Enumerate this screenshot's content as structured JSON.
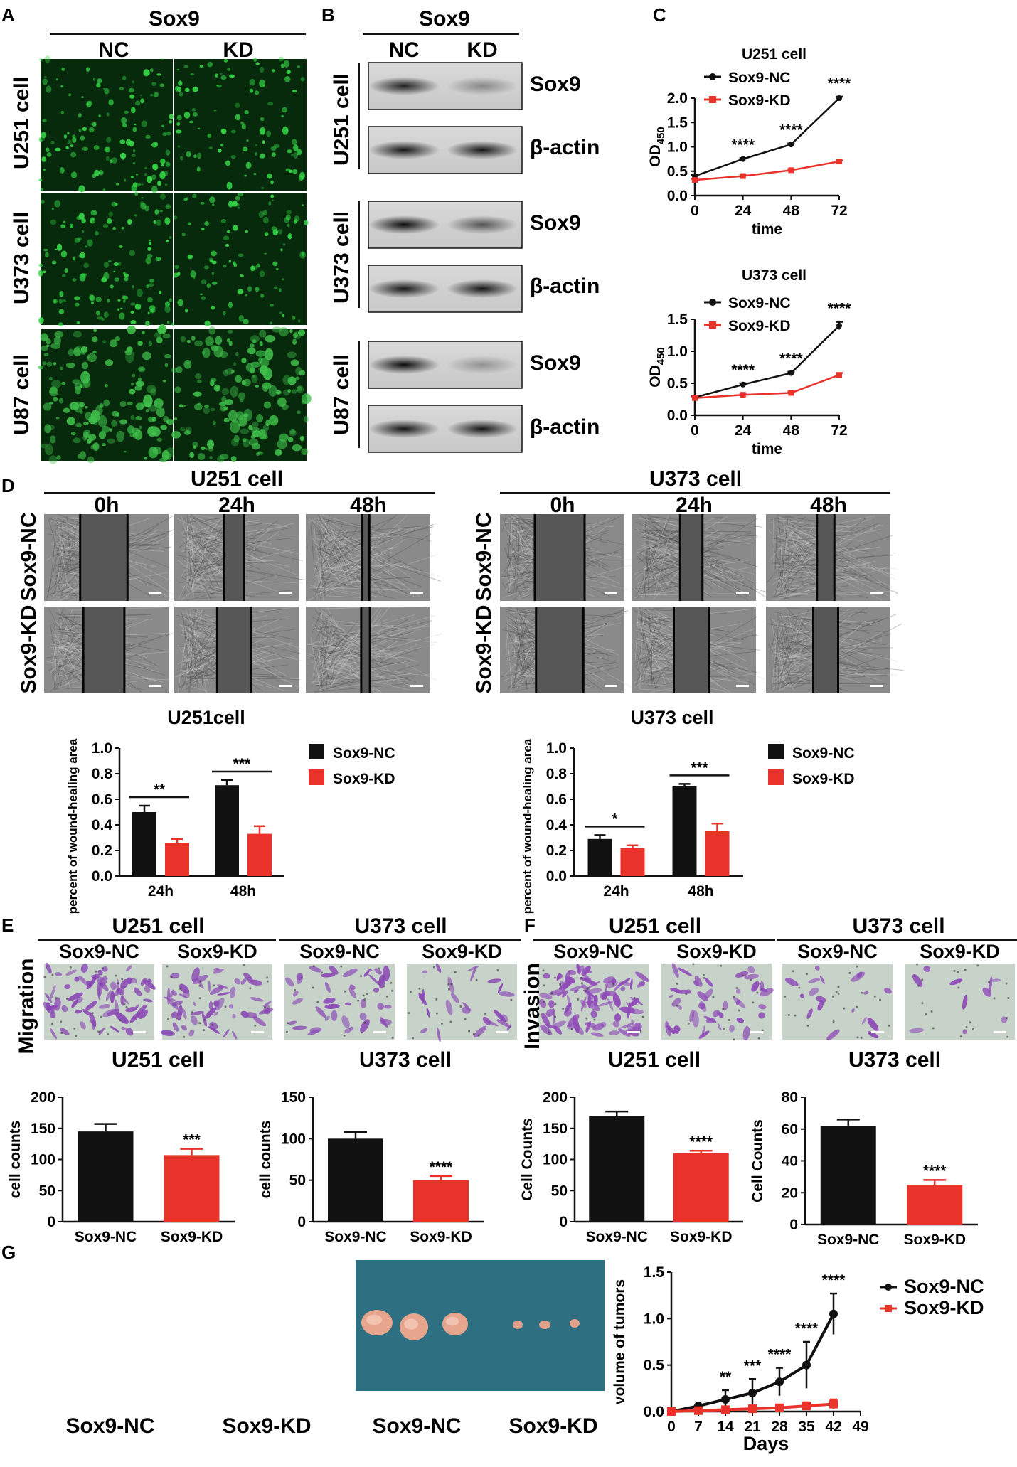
{
  "panels": {
    "A": "A",
    "B": "B",
    "C": "C",
    "D": "D",
    "E": "E",
    "F": "F",
    "G": "G"
  },
  "panelA": {
    "title": "Sox9",
    "cols": [
      "NC",
      "KD"
    ],
    "rows": [
      "U251 cell",
      "U373 cell",
      "U87 cell"
    ]
  },
  "panelB": {
    "title": "Sox9",
    "cols": [
      "NC",
      "KD"
    ],
    "rows": [
      "U251 cell",
      "U373 cell",
      "U87 cell"
    ],
    "bands": [
      "Sox9",
      "β-actin"
    ],
    "sox9_intensity": [
      [
        0.85,
        0.35
      ],
      [
        0.95,
        0.6
      ],
      [
        0.95,
        0.3
      ]
    ]
  },
  "panelC": {
    "series_names": [
      "Sox9-NC",
      "Sox9-KD"
    ],
    "colors": {
      "nc": "#111111",
      "kd": "#e8322a"
    },
    "ylabel_main": "OD",
    "ylabel_sub": "450",
    "xlabel": "time"
  },
  "panelD": {
    "groups": [
      {
        "title": "U251 cell",
        "times": [
          "0h",
          "24h",
          "48h"
        ],
        "rows": [
          "Sox9-NC",
          "Sox9-KD"
        ],
        "gap": [
          [
            0.38,
            0.16,
            0.06
          ],
          [
            0.33,
            0.27,
            0.07
          ]
        ]
      },
      {
        "title": "U373 cell",
        "times": [
          "0h",
          "24h",
          "48h"
        ],
        "rows": [
          "Sox9-NC",
          "Sox9-KD"
        ],
        "gap": [
          [
            0.4,
            0.18,
            0.14
          ],
          [
            0.38,
            0.28,
            0.2
          ]
        ]
      }
    ]
  },
  "panelE": {
    "groups": [
      {
        "title": "U251 cell",
        "cols": [
          "Sox9-NC",
          "Sox9-KD"
        ]
      },
      {
        "title": "U373 cell",
        "cols": [
          "Sox9-NC",
          "Sox9-KD"
        ]
      }
    ],
    "side_label": "Migration",
    "density": [
      [
        70,
        55
      ],
      [
        40,
        25
      ]
    ]
  },
  "panelF": {
    "groups": [
      {
        "title": "U251 cell",
        "cols": [
          "Sox9-NC",
          "Sox9-KD"
        ]
      },
      {
        "title": "U373 cell",
        "cols": [
          "Sox9-NC",
          "Sox9-KD"
        ]
      }
    ],
    "side_label": "Invasion",
    "density": [
      [
        95,
        45
      ],
      [
        18,
        10
      ]
    ]
  },
  "panelG": {
    "labels": [
      "Sox9-NC",
      "Sox9-KD",
      "Sox9-NC",
      "Sox9-KD"
    ]
  },
  "chart_data": [
    {
      "id": "C1",
      "type": "line",
      "title": "U251 cell",
      "x": [
        0,
        24,
        48,
        72
      ],
      "series": [
        {
          "name": "Sox9-NC",
          "values": [
            0.4,
            0.75,
            1.05,
            2.0
          ],
          "err": [
            0.02,
            0.02,
            0.02,
            0.03
          ]
        },
        {
          "name": "Sox9-KD",
          "values": [
            0.32,
            0.4,
            0.52,
            0.7
          ],
          "err": [
            0.02,
            0.02,
            0.02,
            0.02
          ]
        }
      ],
      "xlabel": "time",
      "ylabel": "OD450",
      "ylim": [
        0,
        2.0
      ],
      "yticks": [
        0.0,
        0.5,
        1.0,
        1.5,
        2.0
      ],
      "xticks": [
        0,
        24,
        48,
        72
      ],
      "annotations": [
        {
          "x": 24,
          "text": "****"
        },
        {
          "x": 48,
          "text": "****"
        },
        {
          "x": 72,
          "text": "****"
        }
      ]
    },
    {
      "id": "C2",
      "type": "line",
      "title": "U373 cell",
      "x": [
        0,
        24,
        48,
        72
      ],
      "series": [
        {
          "name": "Sox9-NC",
          "values": [
            0.28,
            0.48,
            0.66,
            1.4
          ],
          "err": [
            0.02,
            0.02,
            0.02,
            0.06
          ]
        },
        {
          "name": "Sox9-KD",
          "values": [
            0.27,
            0.32,
            0.35,
            0.63
          ],
          "err": [
            0.02,
            0.02,
            0.02,
            0.03
          ]
        }
      ],
      "xlabel": "time",
      "ylabel": "OD450",
      "ylim": [
        0,
        1.5
      ],
      "yticks": [
        0.0,
        0.5,
        1.0,
        1.5
      ],
      "xticks": [
        0,
        24,
        48,
        72
      ],
      "annotations": [
        {
          "x": 24,
          "text": "****"
        },
        {
          "x": 48,
          "text": "****"
        },
        {
          "x": 72,
          "text": "****"
        }
      ]
    },
    {
      "id": "D1",
      "type": "bar",
      "title": "U251cell",
      "categories": [
        "24h",
        "48h"
      ],
      "series": [
        {
          "name": "Sox9-NC",
          "values": [
            0.5,
            0.71
          ],
          "err": [
            0.05,
            0.04
          ]
        },
        {
          "name": "Sox9-KD",
          "values": [
            0.26,
            0.33
          ],
          "err": [
            0.03,
            0.06
          ]
        }
      ],
      "ylabel": "percent of wound-healing area",
      "ylim": [
        0,
        1.0
      ],
      "yticks": [
        0.0,
        0.2,
        0.4,
        0.6,
        0.8,
        1.0
      ],
      "annotations": [
        {
          "cat": "24h",
          "text": "**"
        },
        {
          "cat": "48h",
          "text": "***"
        }
      ]
    },
    {
      "id": "D2",
      "type": "bar",
      "title": "U373 cell",
      "categories": [
        "24h",
        "48h"
      ],
      "series": [
        {
          "name": "Sox9-NC",
          "values": [
            0.29,
            0.7
          ],
          "err": [
            0.03,
            0.02
          ]
        },
        {
          "name": "Sox9-KD",
          "values": [
            0.22,
            0.35
          ],
          "err": [
            0.02,
            0.06
          ]
        }
      ],
      "ylabel": "percent of wound-healing area",
      "ylim": [
        0,
        1.0
      ],
      "yticks": [
        0.0,
        0.2,
        0.4,
        0.6,
        0.8,
        1.0
      ],
      "annotations": [
        {
          "cat": "24h",
          "text": "*"
        },
        {
          "cat": "48h",
          "text": "***"
        }
      ]
    },
    {
      "id": "E1",
      "type": "bar",
      "title": "U251 cell",
      "categories": [
        "Sox9-NC",
        "Sox9-KD"
      ],
      "values": [
        145,
        107
      ],
      "err": [
        12,
        10
      ],
      "ylabel": "cell counts",
      "ylim": [
        0,
        200
      ],
      "yticks": [
        0,
        50,
        100,
        150,
        200
      ],
      "annotations": [
        {
          "cat": "Sox9-KD",
          "text": "***"
        }
      ]
    },
    {
      "id": "E2",
      "type": "bar",
      "title": "U373 cell",
      "categories": [
        "Sox9-NC",
        "Sox9-KD"
      ],
      "values": [
        100,
        50
      ],
      "err": [
        8,
        5
      ],
      "ylabel": "cell counts",
      "ylim": [
        0,
        150
      ],
      "yticks": [
        0,
        50,
        100,
        150
      ],
      "annotations": [
        {
          "cat": "Sox9-KD",
          "text": "****"
        }
      ]
    },
    {
      "id": "F1",
      "type": "bar",
      "title": "U251 cell",
      "categories": [
        "Sox9-NC",
        "Sox9-KD"
      ],
      "values": [
        170,
        110
      ],
      "err": [
        7,
        4
      ],
      "ylabel": "Cell Counts",
      "ylim": [
        0,
        200
      ],
      "yticks": [
        0,
        50,
        100,
        150,
        200
      ],
      "annotations": [
        {
          "cat": "Sox9-KD",
          "text": "****"
        }
      ]
    },
    {
      "id": "F2",
      "type": "bar",
      "title": "U373 cell",
      "categories": [
        "Sox9-NC",
        "Sox9-KD"
      ],
      "values": [
        62,
        25
      ],
      "err": [
        4,
        3
      ],
      "ylabel": "Cell Counts",
      "ylim": [
        0,
        80
      ],
      "yticks": [
        0,
        20,
        40,
        60,
        80
      ],
      "annotations": [
        {
          "cat": "Sox9-KD",
          "text": "****"
        }
      ]
    },
    {
      "id": "G",
      "type": "line",
      "x": [
        0,
        7,
        14,
        21,
        28,
        35,
        42
      ],
      "series": [
        {
          "name": "Sox9-NC",
          "values": [
            0.0,
            0.06,
            0.13,
            0.2,
            0.32,
            0.5,
            1.05
          ],
          "err": [
            0.005,
            0.01,
            0.1,
            0.15,
            0.15,
            0.25,
            0.22
          ]
        },
        {
          "name": "Sox9-KD",
          "values": [
            0.0,
            0.01,
            0.02,
            0.03,
            0.04,
            0.06,
            0.08
          ],
          "err": [
            0.005,
            0.01,
            0.01,
            0.02,
            0.03,
            0.04,
            0.05
          ]
        }
      ],
      "xlabel": "Days",
      "ylabel": "volume of tumors",
      "ylim": [
        0,
        1.5
      ],
      "yticks": [
        0.0,
        0.5,
        1.0,
        1.5
      ],
      "xticks": [
        0,
        7,
        14,
        21,
        28,
        35,
        42,
        49
      ],
      "annotations": [
        {
          "x": 14,
          "text": "**"
        },
        {
          "x": 21,
          "text": "***"
        },
        {
          "x": 28,
          "text": "****"
        },
        {
          "x": 35,
          "text": "****"
        },
        {
          "x": 42,
          "text": "****"
        }
      ]
    }
  ]
}
